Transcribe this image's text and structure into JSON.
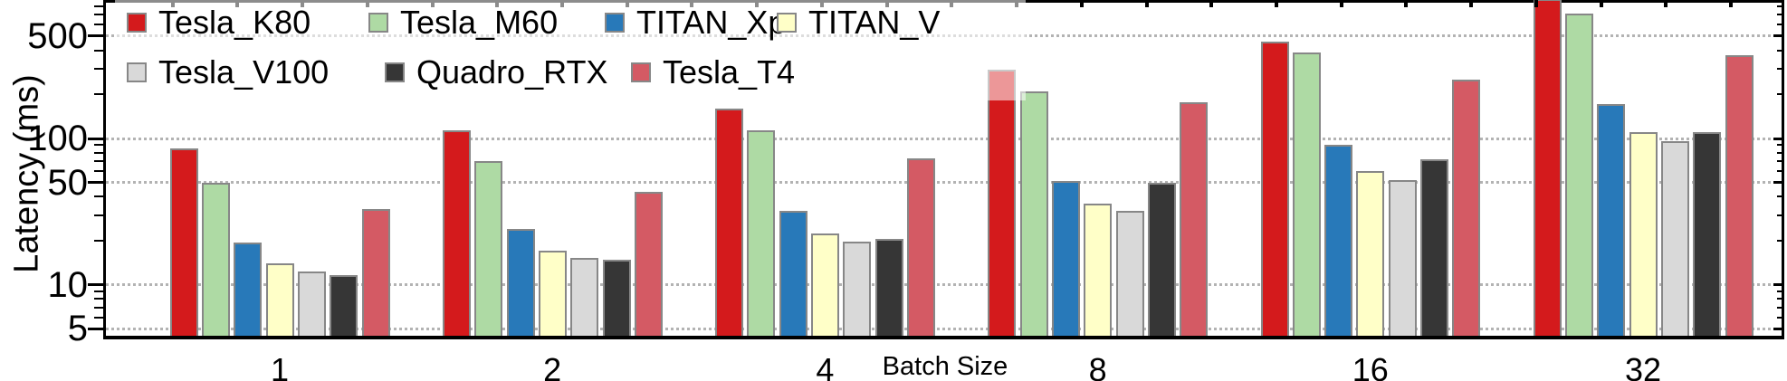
{
  "y_axis": {
    "label": "Latency (ms)",
    "scale": "log",
    "major_ticks": [
      500,
      100,
      50,
      10,
      5
    ],
    "minor_ticks": [
      6,
      7,
      8,
      9,
      20,
      30,
      40,
      60,
      70,
      80,
      90,
      200,
      300,
      400,
      600,
      700,
      800
    ],
    "range": [
      4.4,
      850
    ]
  },
  "x_axis": {
    "label": "Batch Size",
    "tick_labels": [
      "1",
      "2",
      "4",
      "8",
      "16",
      "32"
    ]
  },
  "legend": {
    "position": "upper-left",
    "columns": 4,
    "background": "translucent-white",
    "rows": [
      [
        "Tesla_K80",
        "Tesla_M60",
        "TITAN_Xp",
        "TITAN_V"
      ],
      [
        "Tesla_V100",
        "Quadro_RTX",
        "Tesla_T4"
      ]
    ]
  },
  "chart_data": {
    "type": "bar",
    "title": "",
    "xlabel": "Batch Size",
    "ylabel": "Latency (ms)",
    "yscale": "log",
    "ylim": [
      4.4,
      850
    ],
    "grid": "horizontal dotted lines at major ticks",
    "legend_position": "upper left, 4 columns, translucent background over plot",
    "categories": [
      "1",
      "2",
      "4",
      "8",
      "16",
      "32"
    ],
    "series": [
      {
        "name": "Tesla_K80",
        "color": "#d41a1c",
        "values": [
          85,
          113,
          160,
          295,
          460,
          900
        ]
      },
      {
        "name": "Tesla_M60",
        "color": "#aedaa4",
        "values": [
          50,
          70,
          114,
          210,
          385,
          715
        ]
      },
      {
        "name": "TITAN_Xp",
        "color": "#2879b9",
        "values": [
          19.5,
          24,
          32,
          51,
          90,
          172
        ]
      },
      {
        "name": "TITAN_V",
        "color": "#ffffc8",
        "values": [
          14,
          17,
          22.5,
          36,
          60,
          110
        ]
      },
      {
        "name": "Tesla_V100",
        "color": "#d9d9d9",
        "values": [
          12.3,
          15.2,
          19.7,
          32,
          52,
          96
        ]
      },
      {
        "name": "Quadro_RTX",
        "color": "#363636",
        "values": [
          11.7,
          14.8,
          20.6,
          50,
          72,
          110
        ]
      },
      {
        "name": "Tesla_T4",
        "color": "#d45a64",
        "values": [
          33,
          43,
          73,
          177,
          252,
          370
        ]
      }
    ],
    "annotations": [
      "Tesla_K80 bar at batch size 32 is clipped by the top of the axis",
      "legend translucently overlaps the tops of the batch-8 Tesla_K80 and Tesla_M60 bars"
    ]
  }
}
